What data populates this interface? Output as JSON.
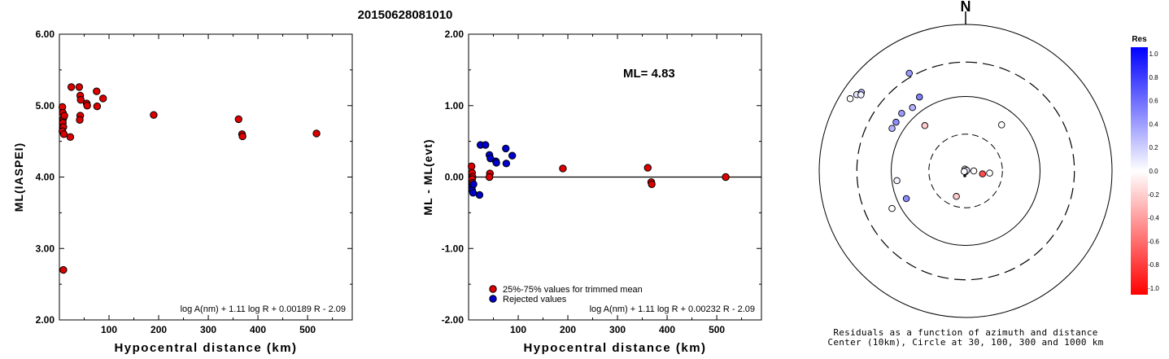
{
  "title": "20150628081010",
  "chart_data": [
    {
      "type": "scatter",
      "xlabel": "Hypocentral distance (km)",
      "ylabel": "ML(IASPEI)",
      "xlim": [
        0,
        590
      ],
      "ylim": [
        2.0,
        6.0
      ],
      "xticks": [
        100,
        200,
        300,
        400,
        500
      ],
      "xtick_labels": [
        "100",
        "200",
        "300",
        "400",
        "500"
      ],
      "yticks": [
        2,
        3,
        4,
        5,
        6
      ],
      "ytick_labels": [
        "2.00",
        "3.00",
        "4.00",
        "5.00",
        "6.00"
      ],
      "formula": "log A(nm) + 1.11 log R + 0.00189 R - 2.09",
      "points": [
        {
          "x": 6,
          "y": 4.98,
          "c": "red"
        },
        {
          "x": 7,
          "y": 4.9,
          "c": "red"
        },
        {
          "x": 8,
          "y": 4.82,
          "c": "red"
        },
        {
          "x": 7,
          "y": 4.76,
          "c": "red"
        },
        {
          "x": 8,
          "y": 4.7,
          "c": "red"
        },
        {
          "x": 6,
          "y": 4.64,
          "c": "red"
        },
        {
          "x": 9,
          "y": 4.6,
          "c": "red"
        },
        {
          "x": 10,
          "y": 4.86,
          "c": "red"
        },
        {
          "x": 8,
          "y": 2.7,
          "c": "red"
        },
        {
          "x": 22,
          "y": 4.56,
          "c": "red"
        },
        {
          "x": 24,
          "y": 5.26,
          "c": "red"
        },
        {
          "x": 40,
          "y": 5.26,
          "c": "red"
        },
        {
          "x": 42,
          "y": 5.14,
          "c": "red"
        },
        {
          "x": 43,
          "y": 5.08,
          "c": "red"
        },
        {
          "x": 42,
          "y": 4.86,
          "c": "red"
        },
        {
          "x": 41,
          "y": 4.8,
          "c": "red"
        },
        {
          "x": 55,
          "y": 5.03,
          "c": "red"
        },
        {
          "x": 56,
          "y": 5.0,
          "c": "red"
        },
        {
          "x": 75,
          "y": 5.2,
          "c": "red"
        },
        {
          "x": 76,
          "y": 4.99,
          "c": "red"
        },
        {
          "x": 88,
          "y": 5.1,
          "c": "red"
        },
        {
          "x": 190,
          "y": 4.87,
          "c": "red"
        },
        {
          "x": 361,
          "y": 4.81,
          "c": "red"
        },
        {
          "x": 368,
          "y": 4.6,
          "c": "red"
        },
        {
          "x": 369,
          "y": 4.57,
          "c": "red"
        },
        {
          "x": 518,
          "y": 4.61,
          "c": "red"
        }
      ]
    },
    {
      "type": "scatter",
      "xlabel": "Hypocentral distance (km)",
      "ylabel": "ML - ML(evt)",
      "xlim": [
        0,
        590
      ],
      "ylim": [
        -2.0,
        2.0
      ],
      "xticks": [
        100,
        200,
        300,
        400,
        500
      ],
      "xtick_labels": [
        "100",
        "200",
        "300",
        "400",
        "500"
      ],
      "yticks": [
        -2,
        -1,
        0,
        1,
        2
      ],
      "ytick_labels": [
        "-2.00",
        "-1.00",
        "0.00",
        "1.00",
        "2.00"
      ],
      "reference_line": 0,
      "annotation": "ML=  4.83",
      "legend": [
        {
          "label": "25%-75% values for trimmed mean",
          "color": "#dd0000"
        },
        {
          "label": "Rejected values",
          "color": "#0000cc"
        }
      ],
      "formula": "log A(nm) + 1.11 log R + 0.00232 R - 2.09",
      "points": [
        {
          "x": 6,
          "y": 0.15,
          "c": "red"
        },
        {
          "x": 7,
          "y": 0.06,
          "c": "red"
        },
        {
          "x": 8,
          "y": 0.0,
          "c": "red"
        },
        {
          "x": 7,
          "y": -0.03,
          "c": "red"
        },
        {
          "x": 8,
          "y": -0.08,
          "c": "red"
        },
        {
          "x": 7,
          "y": -0.13,
          "c": "blue"
        },
        {
          "x": 7,
          "y": -0.18,
          "c": "blue"
        },
        {
          "x": 9,
          "y": -0.22,
          "c": "blue"
        },
        {
          "x": 10,
          "y": -0.1,
          "c": "blue"
        },
        {
          "x": 22,
          "y": -0.25,
          "c": "blue"
        },
        {
          "x": 24,
          "y": 0.45,
          "c": "blue"
        },
        {
          "x": 34,
          "y": 0.45,
          "c": "blue"
        },
        {
          "x": 42,
          "y": 0.31,
          "c": "blue"
        },
        {
          "x": 44,
          "y": 0.26,
          "c": "blue"
        },
        {
          "x": 43,
          "y": 0.05,
          "c": "red"
        },
        {
          "x": 42,
          "y": 0.0,
          "c": "red"
        },
        {
          "x": 55,
          "y": 0.22,
          "c": "blue"
        },
        {
          "x": 56,
          "y": 0.2,
          "c": "blue"
        },
        {
          "x": 75,
          "y": 0.4,
          "c": "blue"
        },
        {
          "x": 76,
          "y": 0.19,
          "c": "blue"
        },
        {
          "x": 88,
          "y": 0.3,
          "c": "blue"
        },
        {
          "x": 190,
          "y": 0.12,
          "c": "red"
        },
        {
          "x": 361,
          "y": 0.13,
          "c": "red"
        },
        {
          "x": 368,
          "y": -0.07,
          "c": "red"
        },
        {
          "x": 369,
          "y": -0.1,
          "c": "red"
        },
        {
          "x": 518,
          "y": 0.0,
          "c": "red"
        }
      ]
    },
    {
      "type": "polar-scatter",
      "north_label": "N",
      "caption_line1": "Residuals as a function of azimuth and distance",
      "caption_line2": "Center (10km), Circle at 30, 100, 300 and 1000 km",
      "rings_km": [
        10,
        30,
        100,
        300,
        1000
      ],
      "colorbar_title": "Res",
      "colorbar_ticks": [
        "1.0",
        "0.8",
        "0.6",
        "0.4",
        "0.2",
        "0.0",
        "-0.2",
        "-0.4",
        "-0.6",
        "-0.8",
        "-1.0"
      ],
      "points": [
        {
          "az": 302,
          "dist": 720,
          "res": 0.0
        },
        {
          "az": 305,
          "dist": 650,
          "res": 0.1
        },
        {
          "az": 307,
          "dist": 600,
          "res": 0.3
        },
        {
          "az": 306,
          "dist": 580,
          "res": 0.05
        },
        {
          "az": 330,
          "dist": 340,
          "res": 0.4
        },
        {
          "az": 328,
          "dist": 150,
          "res": 0.5
        },
        {
          "az": 320,
          "dist": 130,
          "res": 0.3
        },
        {
          "az": 312,
          "dist": 145,
          "res": 0.4
        },
        {
          "az": 305,
          "dist": 140,
          "res": 0.45
        },
        {
          "az": 300,
          "dist": 140,
          "res": 0.3
        },
        {
          "az": 318,
          "dist": 65,
          "res": -0.2
        },
        {
          "az": 262,
          "dist": 85,
          "res": 0.05
        },
        {
          "az": 243,
          "dist": 130,
          "res": 0.0
        },
        {
          "az": 245,
          "dist": 75,
          "res": 0.45
        },
        {
          "az": 38,
          "dist": 60,
          "res": 0.0
        },
        {
          "az": 200,
          "dist": 22,
          "res": -0.2
        },
        {
          "az": 90,
          "dist": 12,
          "res": 0.0
        },
        {
          "az": 100,
          "dist": 16,
          "res": -0.7
        },
        {
          "az": 95,
          "dist": 20,
          "res": 0.0
        },
        {
          "az": 340,
          "dist": 8,
          "res": -0.1
        },
        {
          "az": 270,
          "dist": 3,
          "res": 0.1
        },
        {
          "az": 200,
          "dist": 4,
          "res": 0.0
        },
        {
          "az": 60,
          "dist": 5,
          "res": 0.15
        },
        {
          "az": 250,
          "dist": 6,
          "res": 0.0
        }
      ]
    }
  ]
}
